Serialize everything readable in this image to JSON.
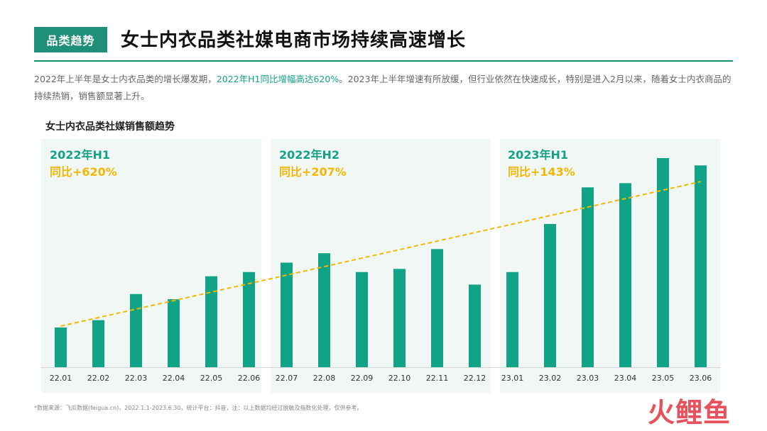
{
  "header": {
    "tag": "品类趋势",
    "title": "女士内衣品类社媒电商市场持续高速增长"
  },
  "description": {
    "part1": "2022年上半年是女士内衣品类的增长爆发期，",
    "highlight": "2022年H1同比增幅高达620%",
    "part2": "。2023年上半年增速有所放缓，但行业依然在快速成长，特别是进入2月以来，随着女士内衣商品的持续热销，销售额显著上升。"
  },
  "chart_title": "女士内衣品类社媒销售额趋势",
  "panels": [
    {
      "period": "2022年H1",
      "growth": "同比+620%"
    },
    {
      "period": "2022年H2",
      "growth": "同比+207%"
    },
    {
      "period": "2023年H1",
      "growth": "同比+143%"
    }
  ],
  "colors": {
    "bar": "#10a386",
    "trend": "#f2b705",
    "panel_bg": "#f1f7f5",
    "accent": "#1f8f78"
  },
  "chart_data": {
    "type": "bar",
    "categories": [
      "22.01",
      "22.02",
      "22.03",
      "22.04",
      "22.05",
      "22.06",
      "22.07",
      "22.08",
      "22.09",
      "22.10",
      "22.11",
      "22.12",
      "23.01",
      "23.02",
      "23.03",
      "23.04",
      "23.05",
      "23.06"
    ],
    "values": [
      19,
      22.5,
      35,
      32.5,
      43.5,
      45.5,
      50,
      54.5,
      45.5,
      47,
      56.5,
      39.5,
      45.5,
      68.5,
      86,
      88,
      100,
      96.5
    ],
    "trendline": true,
    "ylim": [
      0,
      100
    ],
    "grid": false,
    "legend": "none"
  },
  "source": "*数据来源：飞瓜数据(feigua.cn)，2022.1.1-2023.6.30，统计平台：抖音，注：以上数据均经过脱敏及指数化处理，仅供参考。",
  "brand": "火鲤鱼"
}
